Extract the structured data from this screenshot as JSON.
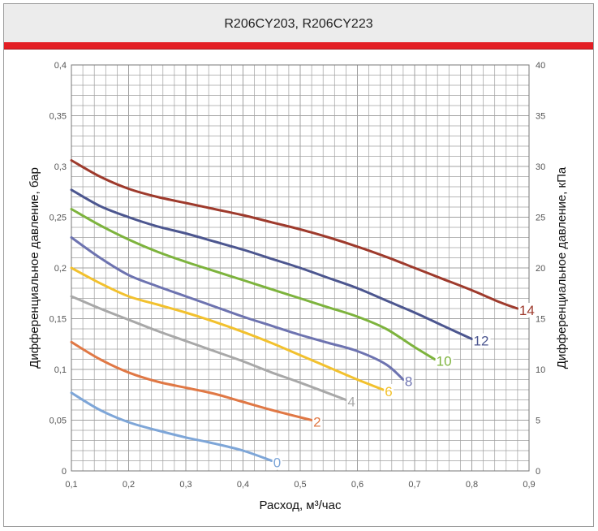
{
  "header": {
    "title": "R206CY203, R206CY223"
  },
  "chart_data": {
    "type": "line",
    "xlabel": "Расход, м³/час",
    "ylabel_left": "Дифференциальное давление, бар",
    "ylabel_right": "Дифференциальное давление, кПа",
    "xlim": [
      0.1,
      0.9
    ],
    "ylim_left": [
      0,
      0.4
    ],
    "ylim_right": [
      0,
      40
    ],
    "x_ticks": [
      "0,1",
      "0,2",
      "0,3",
      "0,4",
      "0,5",
      "0,6",
      "0,7",
      "0,8",
      "0,9"
    ],
    "y_ticks_left": [
      "0",
      "0,05",
      "0,1",
      "0,15",
      "0,2",
      "0,25",
      "0,3",
      "0,35",
      "0,4"
    ],
    "y_ticks_right": [
      "0",
      "5",
      "10",
      "15",
      "20",
      "25",
      "30",
      "35",
      "40"
    ],
    "grid": true,
    "series": [
      {
        "name": "0",
        "color": "#7ea6d8",
        "points": [
          [
            0.1,
            0.077
          ],
          [
            0.15,
            0.06
          ],
          [
            0.2,
            0.048
          ],
          [
            0.25,
            0.04
          ],
          [
            0.3,
            0.033
          ],
          [
            0.35,
            0.027
          ],
          [
            0.4,
            0.02
          ],
          [
            0.45,
            0.01
          ]
        ]
      },
      {
        "name": "2",
        "color": "#e07845",
        "points": [
          [
            0.1,
            0.127
          ],
          [
            0.15,
            0.11
          ],
          [
            0.2,
            0.097
          ],
          [
            0.25,
            0.088
          ],
          [
            0.3,
            0.082
          ],
          [
            0.35,
            0.076
          ],
          [
            0.4,
            0.068
          ],
          [
            0.45,
            0.06
          ],
          [
            0.52,
            0.05
          ]
        ]
      },
      {
        "name": "4",
        "color": "#a8a8a8",
        "points": [
          [
            0.1,
            0.172
          ],
          [
            0.15,
            0.16
          ],
          [
            0.2,
            0.149
          ],
          [
            0.25,
            0.138
          ],
          [
            0.3,
            0.128
          ],
          [
            0.35,
            0.118
          ],
          [
            0.4,
            0.108
          ],
          [
            0.45,
            0.097
          ],
          [
            0.5,
            0.087
          ],
          [
            0.58,
            0.07
          ]
        ]
      },
      {
        "name": "6",
        "color": "#f2c12e",
        "points": [
          [
            0.1,
            0.2
          ],
          [
            0.15,
            0.185
          ],
          [
            0.2,
            0.172
          ],
          [
            0.25,
            0.164
          ],
          [
            0.3,
            0.156
          ],
          [
            0.35,
            0.147
          ],
          [
            0.4,
            0.137
          ],
          [
            0.45,
            0.126
          ],
          [
            0.5,
            0.114
          ],
          [
            0.55,
            0.102
          ],
          [
            0.6,
            0.09
          ],
          [
            0.645,
            0.08
          ]
        ]
      },
      {
        "name": "8",
        "color": "#6d73b0",
        "points": [
          [
            0.1,
            0.23
          ],
          [
            0.15,
            0.21
          ],
          [
            0.2,
            0.193
          ],
          [
            0.25,
            0.182
          ],
          [
            0.3,
            0.172
          ],
          [
            0.35,
            0.162
          ],
          [
            0.4,
            0.152
          ],
          [
            0.45,
            0.143
          ],
          [
            0.5,
            0.134
          ],
          [
            0.55,
            0.126
          ],
          [
            0.6,
            0.118
          ],
          [
            0.65,
            0.105
          ],
          [
            0.68,
            0.09
          ]
        ]
      },
      {
        "name": "10",
        "color": "#7db33d",
        "points": [
          [
            0.1,
            0.258
          ],
          [
            0.15,
            0.242
          ],
          [
            0.2,
            0.228
          ],
          [
            0.25,
            0.216
          ],
          [
            0.3,
            0.206
          ],
          [
            0.35,
            0.197
          ],
          [
            0.4,
            0.188
          ],
          [
            0.45,
            0.179
          ],
          [
            0.5,
            0.17
          ],
          [
            0.55,
            0.161
          ],
          [
            0.6,
            0.152
          ],
          [
            0.65,
            0.14
          ],
          [
            0.7,
            0.122
          ],
          [
            0.735,
            0.11
          ]
        ]
      },
      {
        "name": "12",
        "color": "#4c568f",
        "points": [
          [
            0.1,
            0.277
          ],
          [
            0.15,
            0.261
          ],
          [
            0.2,
            0.25
          ],
          [
            0.25,
            0.241
          ],
          [
            0.3,
            0.234
          ],
          [
            0.35,
            0.226
          ],
          [
            0.4,
            0.218
          ],
          [
            0.45,
            0.209
          ],
          [
            0.5,
            0.2
          ],
          [
            0.55,
            0.19
          ],
          [
            0.6,
            0.18
          ],
          [
            0.65,
            0.168
          ],
          [
            0.7,
            0.156
          ],
          [
            0.75,
            0.143
          ],
          [
            0.8,
            0.13
          ]
        ]
      },
      {
        "name": "14",
        "color": "#9e3a2c",
        "points": [
          [
            0.1,
            0.306
          ],
          [
            0.15,
            0.29
          ],
          [
            0.2,
            0.278
          ],
          [
            0.25,
            0.27
          ],
          [
            0.3,
            0.264
          ],
          [
            0.35,
            0.258
          ],
          [
            0.4,
            0.252
          ],
          [
            0.45,
            0.245
          ],
          [
            0.5,
            0.238
          ],
          [
            0.55,
            0.23
          ],
          [
            0.6,
            0.221
          ],
          [
            0.65,
            0.211
          ],
          [
            0.7,
            0.2
          ],
          [
            0.75,
            0.189
          ],
          [
            0.8,
            0.178
          ],
          [
            0.85,
            0.166
          ],
          [
            0.88,
            0.16
          ]
        ]
      }
    ]
  }
}
